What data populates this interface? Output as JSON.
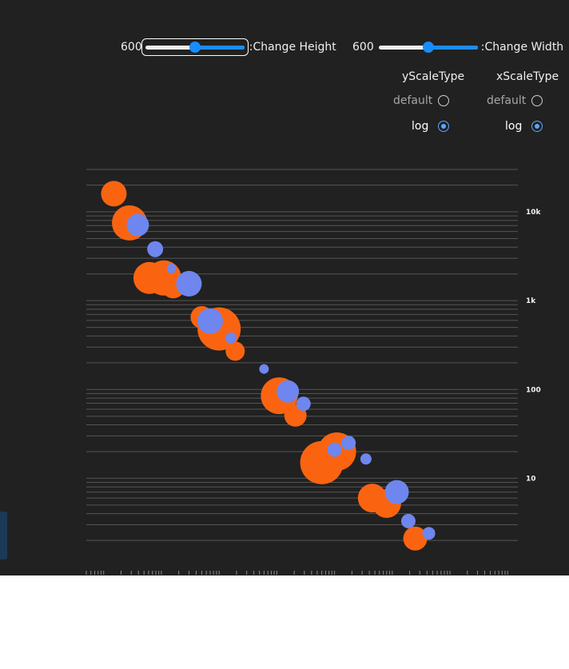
{
  "controls": {
    "height": {
      "value": "600",
      "label": ":Change Height",
      "fraction": 0.5
    },
    "width": {
      "value": "600",
      "label": ":Change Width",
      "fraction": 0.5
    },
    "y_scale": {
      "title": "yScaleType",
      "options": [
        "default",
        "log"
      ],
      "selected": "log"
    },
    "x_scale": {
      "title": "xScaleType",
      "options": [
        "default",
        "log"
      ],
      "selected": "log"
    }
  },
  "colors": {
    "series_a": "#fa6411",
    "series_b": "#6e86ee",
    "grid": "#555555",
    "background": "#212121"
  },
  "chart_data": {
    "type": "scatter",
    "x_scale": "log",
    "y_scale": "log",
    "x_range": [
      0.0005,
      15000
    ],
    "y_range": [
      1.5,
      30000
    ],
    "y_tick_labels": [
      {
        "value": 10,
        "label": "10"
      },
      {
        "value": 100,
        "label": "100"
      },
      {
        "value": 1000,
        "label": "1k"
      },
      {
        "value": 10000,
        "label": "10k"
      }
    ],
    "grid": true,
    "series": [
      {
        "color": "#fa6411",
        "points": [
          {
            "x": 0.0015,
            "y": 16000,
            "size": 16
          },
          {
            "x": 0.0028,
            "y": 7500,
            "size": 22
          },
          {
            "x": 0.0062,
            "y": 1800,
            "size": 20
          },
          {
            "x": 0.011,
            "y": 1800,
            "size": 22
          },
          {
            "x": 0.016,
            "y": 1450,
            "size": 15
          },
          {
            "x": 0.05,
            "y": 650,
            "size": 14
          },
          {
            "x": 0.1,
            "y": 480,
            "size": 27
          },
          {
            "x": 0.19,
            "y": 270,
            "size": 12
          },
          {
            "x": 1.1,
            "y": 85,
            "size": 23
          },
          {
            "x": 2.1,
            "y": 51,
            "size": 14
          },
          {
            "x": 6.0,
            "y": 15,
            "size": 27
          },
          {
            "x": 11.0,
            "y": 20,
            "size": 24
          },
          {
            "x": 45,
            "y": 6.0,
            "size": 18
          },
          {
            "x": 80,
            "y": 5.2,
            "size": 18
          },
          {
            "x": 250,
            "y": 2.1,
            "size": 15
          }
        ]
      },
      {
        "color": "#6e86ee",
        "points": [
          {
            "x": 0.0039,
            "y": 7100,
            "size": 14
          },
          {
            "x": 0.0078,
            "y": 3800,
            "size": 10
          },
          {
            "x": 0.015,
            "y": 2300,
            "size": 6
          },
          {
            "x": 0.03,
            "y": 1550,
            "size": 16
          },
          {
            "x": 0.07,
            "y": 590,
            "size": 16
          },
          {
            "x": 0.16,
            "y": 380,
            "size": 7
          },
          {
            "x": 0.6,
            "y": 170,
            "size": 6
          },
          {
            "x": 1.55,
            "y": 95,
            "size": 14
          },
          {
            "x": 2.9,
            "y": 69,
            "size": 9
          },
          {
            "x": 10.0,
            "y": 21,
            "size": 9
          },
          {
            "x": 17.5,
            "y": 25,
            "size": 9
          },
          {
            "x": 35,
            "y": 16.5,
            "size": 7
          },
          {
            "x": 120,
            "y": 7.0,
            "size": 15
          },
          {
            "x": 190,
            "y": 3.3,
            "size": 9
          },
          {
            "x": 430,
            "y": 2.4,
            "size": 8
          }
        ]
      }
    ]
  }
}
